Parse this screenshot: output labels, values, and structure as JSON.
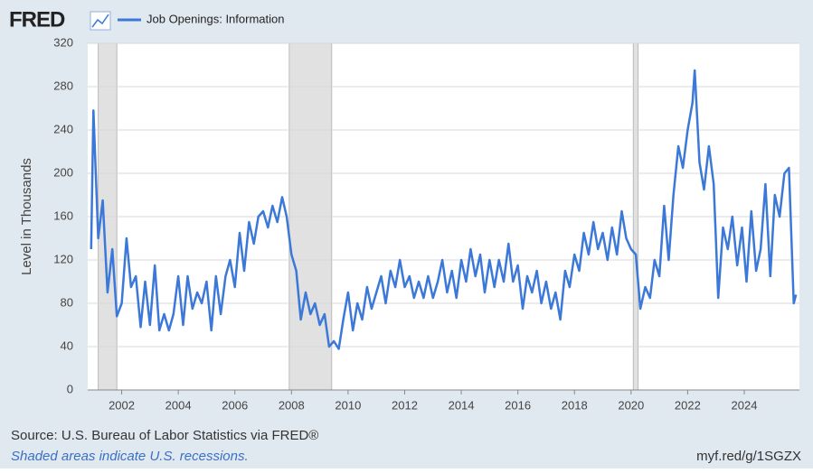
{
  "chart_data": {
    "type": "line",
    "logo": "FRED",
    "ylabel": "Level in Thousands",
    "source": "Source: U.S. Bureau of Labor Statistics via FRED®",
    "note": "Shaded areas indicate U.S. recessions.",
    "link": "myf.red/g/1SGZX",
    "xlim": [
      2000.8,
      2025.95
    ],
    "xticks": [
      2002,
      2004,
      2006,
      2008,
      2010,
      2012,
      2014,
      2016,
      2018,
      2020,
      2022,
      2024
    ],
    "ylim": [
      0,
      320
    ],
    "yticks": [
      0,
      40,
      80,
      120,
      160,
      200,
      240,
      280,
      320
    ],
    "grid": true,
    "recessions": [
      [
        2001.17,
        2001.83
      ],
      [
        2007.92,
        2009.42
      ],
      [
        2020.08,
        2020.25
      ]
    ],
    "x": [
      2000.92,
      2001.0,
      2001.17,
      2001.33,
      2001.5,
      2001.67,
      2001.83,
      2002.0,
      2002.17,
      2002.33,
      2002.5,
      2002.67,
      2002.83,
      2003.0,
      2003.17,
      2003.33,
      2003.5,
      2003.67,
      2003.83,
      2004.0,
      2004.17,
      2004.33,
      2004.5,
      2004.67,
      2004.83,
      2005.0,
      2005.17,
      2005.33,
      2005.5,
      2005.67,
      2005.83,
      2006.0,
      2006.17,
      2006.33,
      2006.5,
      2006.67,
      2006.83,
      2007.0,
      2007.17,
      2007.33,
      2007.5,
      2007.67,
      2007.83,
      2008.0,
      2008.17,
      2008.33,
      2008.5,
      2008.67,
      2008.83,
      2009.0,
      2009.17,
      2009.33,
      2009.5,
      2009.67,
      2009.83,
      2010.0,
      2010.17,
      2010.33,
      2010.5,
      2010.67,
      2010.83,
      2011.0,
      2011.17,
      2011.33,
      2011.5,
      2011.67,
      2011.83,
      2012.0,
      2012.17,
      2012.33,
      2012.5,
      2012.67,
      2012.83,
      2013.0,
      2013.17,
      2013.33,
      2013.5,
      2013.67,
      2013.83,
      2014.0,
      2014.17,
      2014.33,
      2014.5,
      2014.67,
      2014.83,
      2015.0,
      2015.17,
      2015.33,
      2015.5,
      2015.67,
      2015.83,
      2016.0,
      2016.17,
      2016.33,
      2016.5,
      2016.67,
      2016.83,
      2017.0,
      2017.17,
      2017.33,
      2017.5,
      2017.67,
      2017.83,
      2018.0,
      2018.17,
      2018.33,
      2018.5,
      2018.67,
      2018.83,
      2019.0,
      2019.17,
      2019.33,
      2019.5,
      2019.67,
      2019.83,
      2020.0,
      2020.17,
      2020.33,
      2020.5,
      2020.67,
      2020.83,
      2021.0,
      2021.17,
      2021.33,
      2021.5,
      2021.67,
      2021.83,
      2022.0,
      2022.17,
      2022.25,
      2022.42,
      2022.58,
      2022.75,
      2022.92,
      2023.08,
      2023.25,
      2023.42,
      2023.58,
      2023.75,
      2023.92,
      2024.08,
      2024.25,
      2024.42,
      2024.58,
      2024.75,
      2024.92,
      2025.08,
      2025.25,
      2025.42,
      2025.58,
      2025.75,
      2025.83
    ],
    "series": [
      {
        "name": "Job Openings: Information",
        "color": "#3c78d8",
        "values": [
          130,
          258,
          140,
          175,
          90,
          130,
          68,
          80,
          140,
          95,
          105,
          58,
          100,
          60,
          115,
          55,
          70,
          55,
          70,
          105,
          60,
          105,
          75,
          90,
          80,
          100,
          55,
          105,
          70,
          105,
          120,
          95,
          145,
          110,
          155,
          135,
          160,
          165,
          150,
          170,
          155,
          178,
          160,
          125,
          110,
          65,
          90,
          70,
          80,
          60,
          70,
          40,
          45,
          38,
          65,
          90,
          55,
          80,
          65,
          95,
          75,
          90,
          105,
          80,
          110,
          95,
          120,
          95,
          105,
          85,
          100,
          85,
          105,
          85,
          100,
          120,
          90,
          110,
          85,
          120,
          100,
          130,
          105,
          125,
          90,
          120,
          95,
          120,
          100,
          135,
          100,
          115,
          75,
          105,
          90,
          110,
          80,
          100,
          75,
          90,
          65,
          110,
          95,
          125,
          110,
          145,
          125,
          155,
          130,
          145,
          120,
          150,
          125,
          165,
          140,
          130,
          125,
          75,
          95,
          85,
          120,
          105,
          170,
          120,
          180,
          225,
          205,
          240,
          265,
          295,
          210,
          185,
          225,
          190,
          85,
          150,
          130,
          160,
          115,
          150,
          100,
          165,
          110,
          130,
          190,
          105,
          180,
          160,
          200,
          205,
          80,
          88
        ]
      }
    ]
  }
}
